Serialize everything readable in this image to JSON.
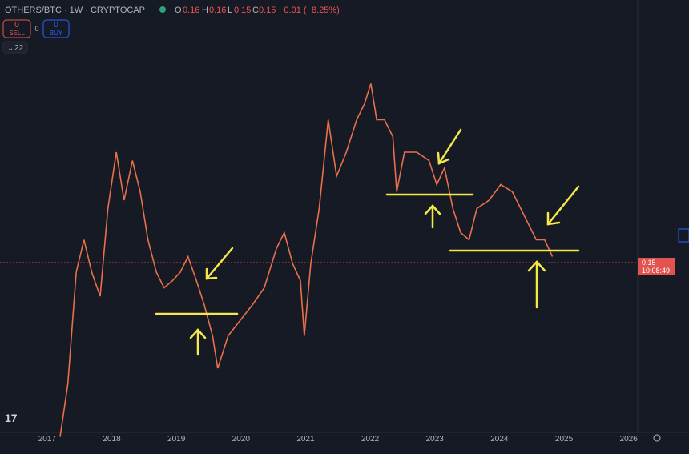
{
  "header": {
    "symbol": "OTHERS/BTC · 1W · CRYPTOCAP",
    "o_label": "O",
    "o": 0.16,
    "h_label": "H",
    "h": 0.16,
    "l_label": "L",
    "l": 0.15,
    "c_label": "C",
    "c": 0.15,
    "change": "−0.01 (−8.25%)"
  },
  "trade": {
    "sell_count": 0,
    "sell": "SELL",
    "spread": 0,
    "buy_count": 0,
    "buy": "BUY",
    "indicators": 22
  },
  "price_tag": {
    "price": 0.15,
    "countdown": "10:08:49"
  },
  "chart_data": {
    "type": "line",
    "x": [
      2017.2,
      2017.32,
      2017.45,
      2017.57,
      2017.69,
      2017.82,
      2017.94,
      2018.07,
      2018.19,
      2018.32,
      2018.44,
      2018.56,
      2018.69,
      2018.81,
      2018.94,
      2019.06,
      2019.18,
      2019.31,
      2019.43,
      2019.56,
      2019.64,
      2019.8,
      2019.99,
      2020.18,
      2020.36,
      2020.55,
      2020.67,
      2020.8,
      2020.92,
      2020.98,
      2021.08,
      2021.21,
      2021.35,
      2021.48,
      2021.63,
      2021.79,
      2021.91,
      2022.01,
      2022.1,
      2022.22,
      2022.35,
      2022.41,
      2022.53,
      2022.72,
      2022.91,
      2023.03,
      2023.15,
      2023.28,
      2023.4,
      2023.53,
      2023.65,
      2023.84,
      2024.02,
      2024.2,
      2024.33,
      2024.45,
      2024.57,
      2024.7,
      2024.82
    ],
    "series": [
      {
        "color": "#e8704a",
        "values": [
          0.003,
          0.047,
          0.14,
          0.167,
          0.14,
          0.12,
          0.193,
          0.24,
          0.2,
          0.233,
          0.207,
          0.167,
          0.14,
          0.127,
          0.133,
          0.14,
          0.153,
          0.133,
          0.113,
          0.087,
          0.06,
          0.087,
          0.1,
          0.113,
          0.127,
          0.16,
          0.173,
          0.147,
          0.133,
          0.087,
          0.147,
          0.193,
          0.267,
          0.22,
          0.24,
          0.267,
          0.28,
          0.297,
          0.267,
          0.267,
          0.253,
          0.207,
          0.24,
          0.24,
          0.233,
          0.213,
          0.227,
          0.193,
          0.173,
          0.167,
          0.193,
          0.2,
          0.213,
          0.207,
          0.193,
          0.18,
          0.167,
          0.167,
          0.153
        ]
      }
    ],
    "xlim": [
      2016.27,
      2026.19
    ],
    "ylim": [
      0,
      0.36
    ],
    "xticks": [
      2017,
      2018,
      2019,
      2020,
      2021,
      2022,
      2023,
      2024,
      2025,
      2026
    ]
  }
}
